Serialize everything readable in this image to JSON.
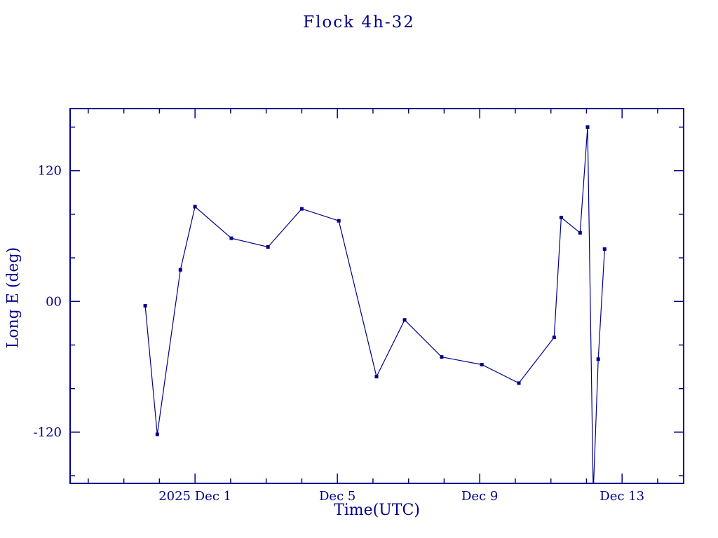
{
  "colors": {
    "plot": "#00008B",
    "background": "#ffffff"
  },
  "chart_data": {
    "type": "line",
    "title": "Flock 4h-32",
    "xlabel": "Time(UTC)",
    "ylabel": "Long E (deg)",
    "x_axis": {
      "unit": "day of December 2025 (Dec 1 = 1, values < 1 are late November)",
      "lim": [
        -2.51,
        14.73
      ],
      "major_ticks": [
        1,
        5,
        9,
        13
      ],
      "major_tick_labels": [
        "2025 Dec 1",
        "Dec 5",
        "Dec 9",
        "Dec 13"
      ],
      "minor_tick_step": 1
    },
    "y_axis": {
      "lim": [
        -167,
        177
      ],
      "major_ticks": [
        120,
        0,
        -120
      ],
      "major_tick_labels": [
        "120",
        "00",
        "-120"
      ],
      "minor_tick_step": 40
    },
    "marker": "filled-square",
    "grid": false,
    "legend": "none",
    "series": [
      {
        "points": [
          {
            "day": -0.4,
            "deg": -4
          },
          {
            "day": -0.06,
            "deg": -122
          },
          {
            "day": 0.59,
            "deg": 29
          },
          {
            "day": 1.0,
            "deg": 87
          },
          {
            "day": 2.02,
            "deg": 58
          },
          {
            "day": 3.05,
            "deg": 50
          },
          {
            "day": 4.0,
            "deg": 85
          },
          {
            "day": 5.04,
            "deg": 74
          },
          {
            "day": 6.1,
            "deg": -69
          },
          {
            "day": 6.89,
            "deg": -17
          },
          {
            "day": 7.93,
            "deg": -51
          },
          {
            "day": 9.06,
            "deg": -58
          },
          {
            "day": 10.1,
            "deg": -75
          },
          {
            "day": 11.09,
            "deg": -33
          },
          {
            "day": 11.29,
            "deg": 77
          },
          {
            "day": 11.82,
            "deg": 63
          },
          {
            "day": 12.03,
            "deg": 160
          },
          {
            "day": 12.19,
            "deg": -176
          },
          {
            "day": 12.33,
            "deg": -53
          },
          {
            "day": 12.51,
            "deg": 48
          }
        ]
      }
    ]
  }
}
